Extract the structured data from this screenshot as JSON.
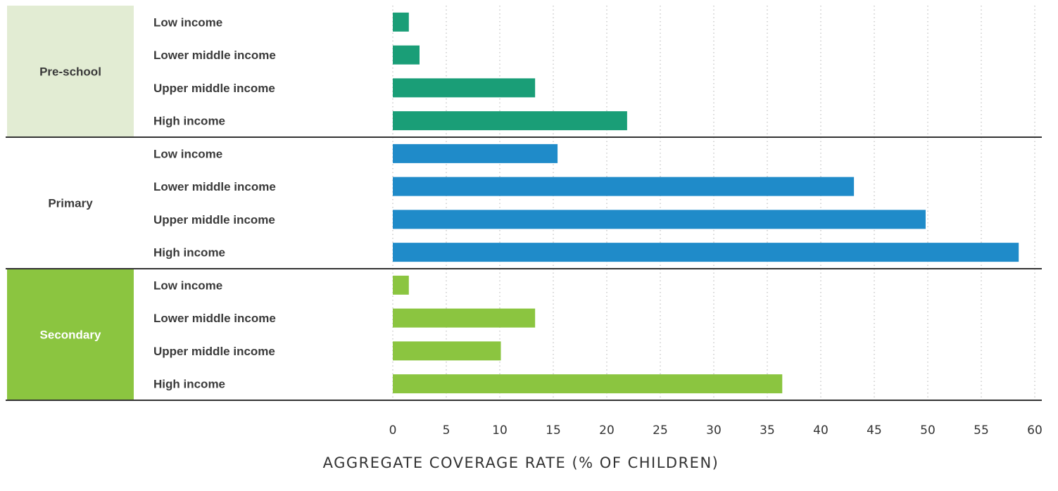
{
  "chart_data": {
    "type": "bar",
    "orientation": "horizontal",
    "xlabel": "AGGREGATE COVERAGE RATE (% OF CHILDREN)",
    "xlim": [
      0,
      60
    ],
    "x_ticks": [
      0,
      5,
      10,
      15,
      20,
      25,
      30,
      35,
      40,
      45,
      50,
      55,
      60
    ],
    "grid": "vertical dotted",
    "groups": [
      {
        "name": "Pre-school",
        "color": "#1a9e77",
        "label_bg": "#e2ecd3",
        "label_color": "#3a3a3a",
        "categories": [
          "Low income",
          "Lower middle income",
          "Upper middle income",
          "High income"
        ],
        "values": [
          1.5,
          2.5,
          13.3,
          21.9
        ]
      },
      {
        "name": "Primary",
        "color": "#1f8bc9",
        "label_bg": "#ffffff",
        "label_color": "#3a3a3a",
        "categories": [
          "Low income",
          "Lower middle income",
          "Upper middle income",
          "High income"
        ],
        "values": [
          15.4,
          43.1,
          49.8,
          58.5
        ]
      },
      {
        "name": "Secondary",
        "color": "#8bc540",
        "label_bg": "#8bc540",
        "label_color": "#ffffff",
        "categories": [
          "Low income",
          "Lower middle income",
          "Upper middle income",
          "High income"
        ],
        "values": [
          1.5,
          13.3,
          10.1,
          36.4
        ]
      }
    ]
  }
}
